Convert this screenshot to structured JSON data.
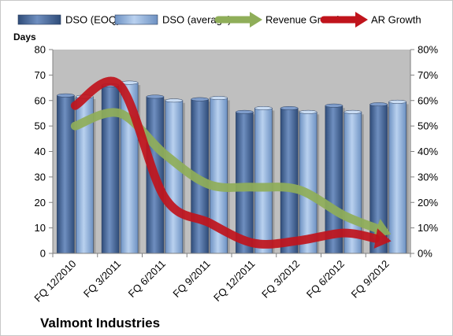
{
  "chart_data": {
    "type": "bar",
    "title": "Valmont Industries",
    "ylabel": "Days",
    "ylim": [
      0,
      80
    ],
    "y2lim": [
      0,
      0.8
    ],
    "yticks": [
      0,
      10,
      20,
      30,
      40,
      50,
      60,
      70,
      80
    ],
    "y2ticks": [
      "0%",
      "10%",
      "20%",
      "30%",
      "40%",
      "50%",
      "60%",
      "70%",
      "80%"
    ],
    "categories": [
      "FQ 12/2010",
      "FQ 3/2011",
      "FQ 6/2011",
      "FQ 9/2011",
      "FQ 12/2011",
      "FQ 3/2012",
      "FQ 6/2012",
      "FQ 9/2012"
    ],
    "legend_position": "top",
    "grid": false,
    "series": [
      {
        "name": "DSO (EOQ)",
        "kind": "bar",
        "axis": "left",
        "color": "#4a6a9c",
        "values": [
          62,
          66,
          61.5,
          60.5,
          55.5,
          57,
          58,
          58.5
        ]
      },
      {
        "name": "DSO (average)",
        "kind": "bar",
        "axis": "left",
        "color": "#8fb1dc",
        "values": [
          61.5,
          67,
          60,
          61,
          57,
          55.5,
          55.5,
          59.5
        ]
      },
      {
        "name": "Revenue Growth",
        "kind": "arrow-line",
        "axis": "right",
        "color": "#8fae59",
        "values": [
          0.5,
          0.55,
          0.39,
          0.27,
          0.26,
          0.25,
          0.15,
          0.08
        ]
      },
      {
        "name": "AR Growth",
        "kind": "arrow-line",
        "axis": "right",
        "color": "#c0141c",
        "values": [
          0.58,
          0.66,
          0.22,
          0.12,
          0.04,
          0.05,
          0.08,
          0.05
        ]
      }
    ]
  }
}
